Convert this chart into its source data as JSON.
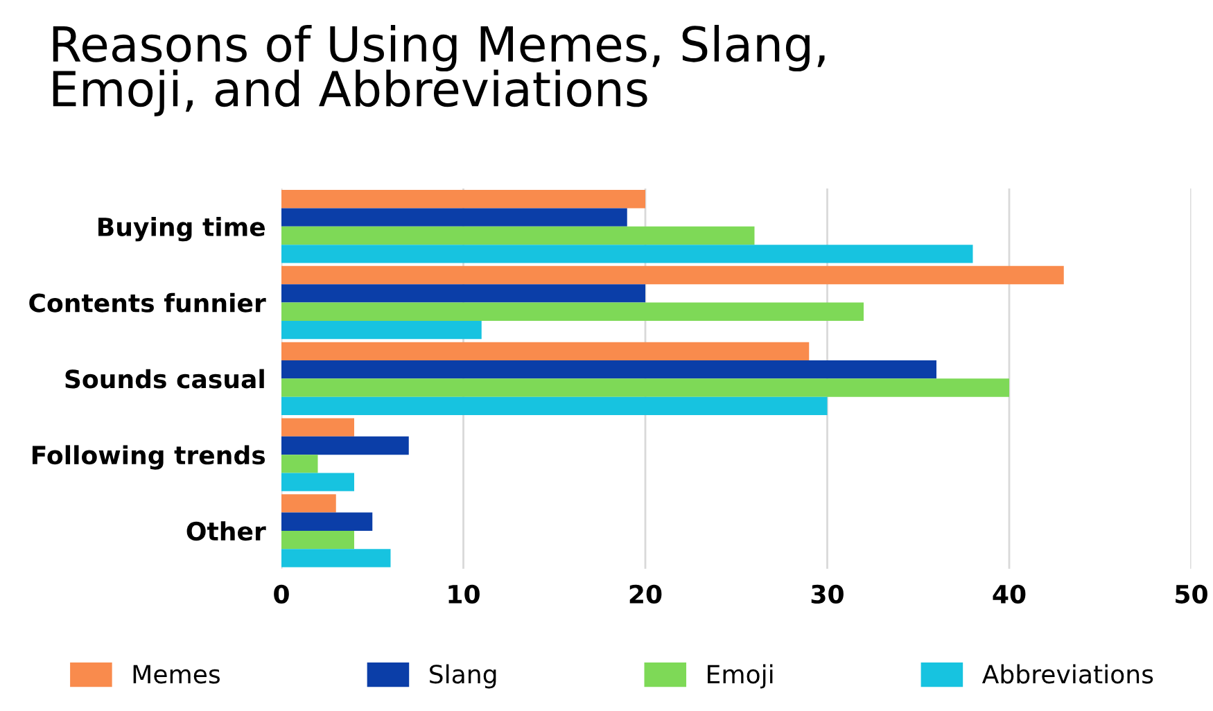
{
  "chart_data": {
    "type": "bar",
    "orientation": "horizontal",
    "title": "Reasons of Using Memes, Slang,\nEmoji, and Abbreviations",
    "categories": [
      "Buying time",
      "Contents funnier",
      "Sounds casual",
      "Following trends",
      "Other"
    ],
    "series": [
      {
        "name": "Memes",
        "color": "#f98b4d",
        "values": [
          20,
          43,
          29,
          4,
          3
        ]
      },
      {
        "name": "Slang",
        "color": "#0b3ea8",
        "values": [
          19,
          20,
          36,
          7,
          5
        ]
      },
      {
        "name": "Emoji",
        "color": "#7ed957",
        "values": [
          26,
          32,
          40,
          2,
          4
        ]
      },
      {
        "name": "Abbreviations",
        "color": "#17c3e0",
        "values": [
          38,
          11,
          30,
          4,
          6
        ]
      }
    ],
    "xlim": [
      0,
      50
    ],
    "xticks": [
      0,
      10,
      20,
      30,
      40,
      50
    ],
    "grid": "x",
    "legend": "bottom"
  }
}
